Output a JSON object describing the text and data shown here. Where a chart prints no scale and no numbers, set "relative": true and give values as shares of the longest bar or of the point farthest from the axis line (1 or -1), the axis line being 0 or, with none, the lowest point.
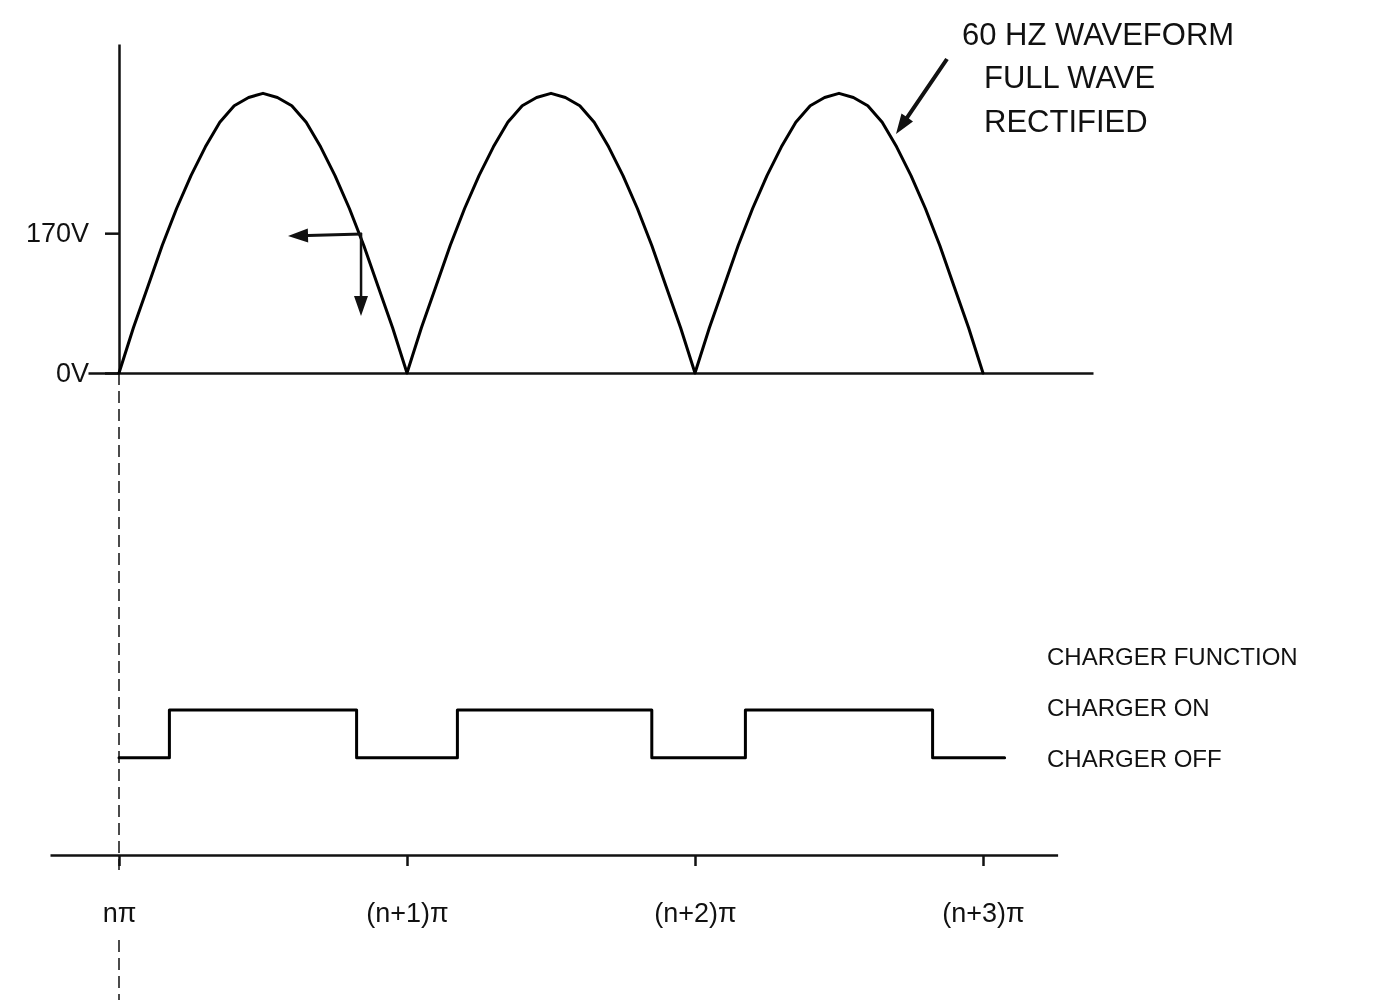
{
  "chart_data": [
    {
      "type": "line",
      "annotations": [
        "60 HZ WAVEFORM\nFULL WAVE\nRECTIFIED"
      ],
      "categories": [
        null,
        null,
        null,
        null,
        null,
        null,
        null,
        null,
        null,
        null,
        null,
        null,
        null,
        null,
        null,
        null,
        null,
        null,
        null,
        null,
        null,
        null,
        null,
        null,
        null,
        null,
        null,
        null,
        null,
        null,
        null,
        null,
        null,
        null,
        null,
        null,
        null,
        null,
        null,
        null,
        null,
        null,
        null,
        null,
        null,
        null,
        null,
        null,
        null,
        null,
        null,
        null,
        null,
        null,
        null,
        null,
        null,
        null,
        null,
        null,
        null
      ],
      "ylim": [
        0,
        400
      ],
      "yticks": [
        {
          "value": 0,
          "label": "0V"
        },
        {
          "value": 170,
          "label": "170V"
        }
      ],
      "tick_labels": "y",
      "color": "#000000",
      "values": [
        0,
        55,
        105,
        155,
        200,
        240,
        275,
        305,
        325,
        335,
        340,
        335,
        325,
        305,
        275,
        240,
        200,
        155,
        105,
        55,
        0,
        55,
        105,
        155,
        200,
        240,
        275,
        305,
        325,
        335,
        340,
        335,
        325,
        305,
        275,
        240,
        200,
        155,
        105,
        55,
        0,
        55,
        105,
        155,
        200,
        240,
        275,
        305,
        325,
        335,
        340,
        335,
        325,
        305,
        275,
        240,
        200,
        155,
        105,
        55,
        0
      ]
    },
    {
      "type": "step",
      "relative": true,
      "annotations": [
        "CHARGER FUNCTION",
        "CHARGER ON",
        "CHARGER OFF"
      ],
      "categories": [
        "nπ",
        null,
        null,
        null,
        null,
        null,
        null,
        null,
        null,
        null,
        null,
        null,
        null,
        null,
        null,
        null,
        null,
        null,
        null,
        null,
        null,
        null,
        null,
        null,
        null,
        null,
        null,
        null,
        null,
        null,
        null,
        null,
        null,
        null,
        null,
        null,
        null,
        null,
        null,
        null,
        "(n+1)π",
        null,
        null,
        null,
        null,
        null,
        null,
        null,
        null,
        null,
        null,
        null,
        null,
        null,
        null,
        null,
        null,
        null,
        null,
        null,
        null,
        null,
        null,
        null,
        null,
        null,
        null,
        null,
        null,
        null,
        null,
        null,
        null,
        null,
        null,
        null,
        null,
        null,
        null,
        null,
        "(n+2)π",
        null,
        null,
        null,
        null,
        null,
        null,
        null,
        null,
        null,
        null,
        null,
        null,
        null,
        null,
        null,
        null,
        null,
        null,
        null,
        null,
        null,
        null,
        null,
        null,
        null,
        null,
        null,
        null,
        null,
        null,
        null,
        null,
        null,
        null,
        null,
        null,
        null,
        null,
        null,
        "(n+3)π",
        null,
        null,
        null
      ],
      "color": "#000000",
      "values": [
        0.67,
        0.67,
        0.67,
        0.67,
        0.67,
        0.67,
        0.67,
        1,
        1,
        1,
        1,
        1,
        1,
        1,
        1,
        1,
        1,
        1,
        1,
        1,
        1,
        1,
        1,
        1,
        1,
        1,
        1,
        1,
        1,
        1,
        1,
        1,
        1,
        0.67,
        0.67,
        0.67,
        0.67,
        0.67,
        0.67,
        0.67,
        0.67,
        0.67,
        0.67,
        0.67,
        0.67,
        0.67,
        0.67,
        1,
        1,
        1,
        1,
        1,
        1,
        1,
        1,
        1,
        1,
        1,
        1,
        1,
        1,
        1,
        1,
        1,
        1,
        1,
        1,
        1,
        1,
        1,
        1,
        1,
        1,
        1,
        0.67,
        0.67,
        0.67,
        0.67,
        0.67,
        0.67,
        0.67,
        0.67,
        0.67,
        0.67,
        0.67,
        0.67,
        0.67,
        1,
        1,
        1,
        1,
        1,
        1,
        1,
        1,
        1,
        1,
        1,
        1,
        1,
        1,
        1,
        1,
        1,
        1,
        1,
        1,
        1,
        1,
        1,
        1,
        1,
        1,
        0.67,
        0.67,
        0.67,
        0.67,
        0.67,
        0.67,
        0.67,
        0.67,
        0.67,
        0.67,
        0.67
      ]
    }
  ]
}
